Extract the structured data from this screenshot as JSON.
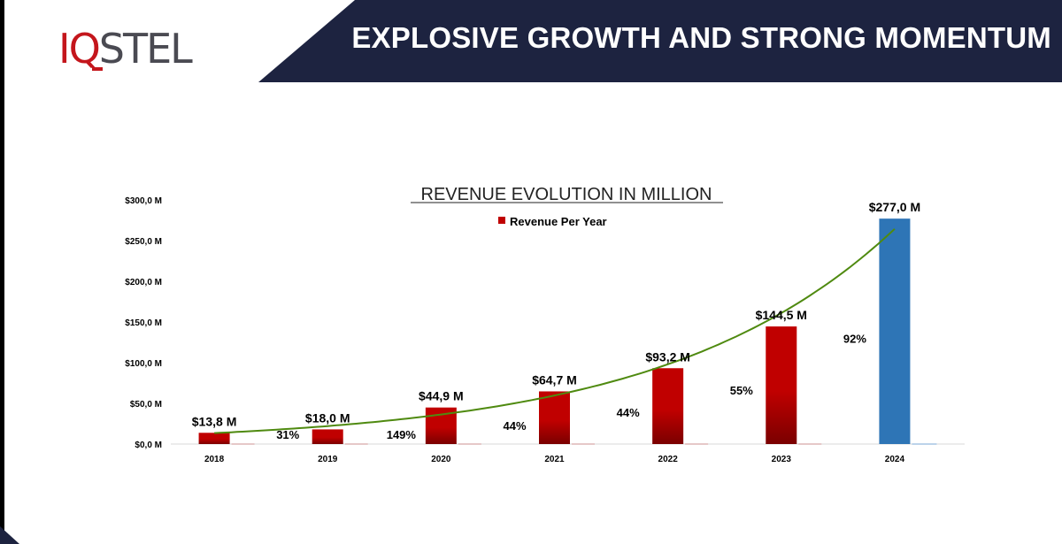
{
  "brand": {
    "logo_part_1": "IQ",
    "logo_part_2": "STEL"
  },
  "header": {
    "title": "EXPLOSIVE GROWTH AND STRONG MOMENTUM"
  },
  "colors": {
    "header_bg": "#1d2340",
    "bar_red": "#c00000",
    "bar_blue": "#2e75b6",
    "trend_green": "#4f8a10",
    "logo_red": "#c4161c"
  },
  "chart_data": {
    "type": "bar",
    "title": "REVENUE EVOLUTION IN MILLION",
    "categories": [
      "2018",
      "2019",
      "2020",
      "2021",
      "2022",
      "2023",
      "2024"
    ],
    "series": [
      {
        "name": "Revenue Per Year",
        "values": [
          13.8,
          18.0,
          44.9,
          64.7,
          93.2,
          144.5,
          277.0
        ]
      }
    ],
    "bar_colors": [
      "#c00000",
      "#c00000",
      "#c00000",
      "#c00000",
      "#c00000",
      "#c00000",
      "#2e75b6"
    ],
    "data_labels": [
      "$13,8 M",
      "$18,0 M",
      "$44,9 M",
      "$64,7 M",
      "$93,2 M",
      "$144,5 M",
      "$277,0 M"
    ],
    "growth_labels": [
      "",
      "31%",
      "149%",
      "44%",
      "44%",
      "55%",
      "92%"
    ],
    "yticks": [
      0,
      50,
      100,
      150,
      200,
      250,
      300
    ],
    "ytick_labels": [
      "$0,0 M",
      "$50,0 M",
      "$100,0 M",
      "$150,0 M",
      "$200,0 M",
      "$250,0 M",
      "$300,0 M"
    ],
    "ylim": [
      0,
      300
    ],
    "trendline": "exponential",
    "legend_position": "top",
    "grid": false
  }
}
